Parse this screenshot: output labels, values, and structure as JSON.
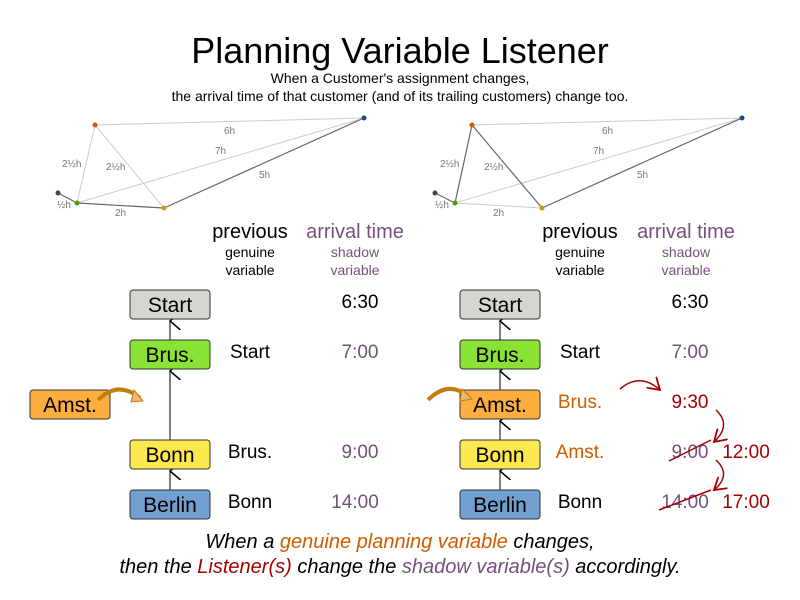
{
  "title": "Planning Variable Listener",
  "subtitle_line1": "When a Customer's assignment changes,",
  "subtitle_line2": "the arrival time of that customer (and of its trailing customers) change too.",
  "colors": {
    "start": "#d3d7cf",
    "brus": "#8ae234",
    "amst": "#fcaf3e",
    "bonn": "#fce94f",
    "berlin": "#729fcf",
    "genuine": "#ce5c00",
    "listener": "#a40000",
    "shadow": "#75507b"
  },
  "graph_labels": {
    "top": "6h",
    "diag": "7h",
    "right": "5h",
    "left": "2½h",
    "mid": "2½h",
    "short": "½h",
    "bottom": "2h"
  },
  "headers": {
    "previous": "previous",
    "genuine": "genuine",
    "variable": "variable",
    "arrival": "arrival time",
    "shadow": "shadow",
    "shadow_variable": "variable"
  },
  "nodes": {
    "start": "Start",
    "brus": "Brus.",
    "amst": "Amst.",
    "bonn": "Bonn",
    "berlin": "Berlin"
  },
  "before": {
    "brus_prev": "Start",
    "bonn_prev": "Brus.",
    "berlin_prev": "Bonn",
    "start_time": "6:30",
    "brus_time": "7:00",
    "bonn_time": "9:00",
    "berlin_time": "14:00"
  },
  "after": {
    "brus_prev": "Start",
    "amst_prev": "Brus.",
    "bonn_prev": "Amst.",
    "berlin_prev": "Bonn",
    "start_time": "6:30",
    "brus_time": "7:00",
    "amst_time": "9:30",
    "bonn_old": "9:00",
    "bonn_new": "12:00",
    "berlin_old": "14:00",
    "berlin_new": "17:00"
  },
  "footer": {
    "l1a": "When a ",
    "l1b": "genuine planning variable",
    "l1c": " changes,",
    "l2a": "then the ",
    "l2b": "Listener(s)",
    "l2c": " change the ",
    "l2d": "shadow variable(s)",
    "l2e": " accordingly."
  }
}
